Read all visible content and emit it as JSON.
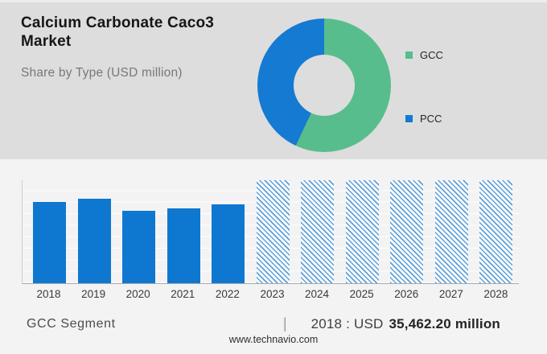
{
  "header": {
    "title": "Calcium Carbonate Caco3 Market",
    "subtitle": "Share by Type (USD million)"
  },
  "chart_data": [
    {
      "type": "pie",
      "subtype": "donut",
      "title": "Share by Type (USD million)",
      "labels": [
        "GCC",
        "PCC"
      ],
      "values_percent": [
        57,
        43
      ],
      "colors": [
        "#58BD8C",
        "#147AD2"
      ],
      "legend_position": "right"
    },
    {
      "type": "bar",
      "categories": [
        "2018",
        "2019",
        "2020",
        "2021",
        "2022",
        "2023",
        "2024",
        "2025",
        "2026",
        "2027",
        "2028"
      ],
      "values": [
        35462.2,
        36950,
        31750,
        32700,
        34450,
        null,
        null,
        null,
        null,
        null,
        null
      ],
      "forecast_categories": [
        "2023",
        "2024",
        "2025",
        "2026",
        "2027",
        "2028"
      ],
      "unit": "USD million",
      "ylim": [
        0,
        45000
      ],
      "grid": true,
      "bar_color": "#0E78D1",
      "forecast_hatch_color": "#5E9FD8",
      "forecast_bar_bg": "#FBFDFF",
      "annotation": "2018 : USD 35,462.20 million"
    }
  ],
  "footer": {
    "segment_label": "GCC Segment",
    "separator": "|",
    "value_prefix": "2018 : USD",
    "value_bold": "35,462.20 million",
    "website": "www.technavio.com"
  },
  "colors": {
    "top_panel_bg": "#DDDDDD",
    "bottom_panel_bg": "#F3F3F3",
    "axis": "#A8A8A8",
    "gridline": "#FFFFFF"
  }
}
